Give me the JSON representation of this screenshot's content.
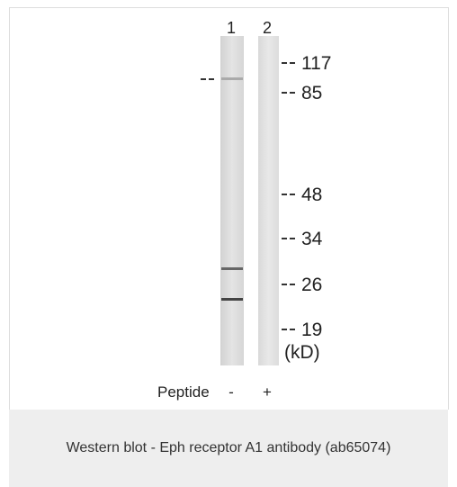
{
  "figure": {
    "lanes": [
      "1",
      "2"
    ],
    "markers": [
      "117",
      "85",
      "48",
      "34",
      "26",
      "19"
    ],
    "unit": "(kD)",
    "treatment_label": "Peptide",
    "treatments": [
      "-",
      "+"
    ]
  },
  "caption": "Western blot - Eph receptor A1 antibody (ab65074)"
}
